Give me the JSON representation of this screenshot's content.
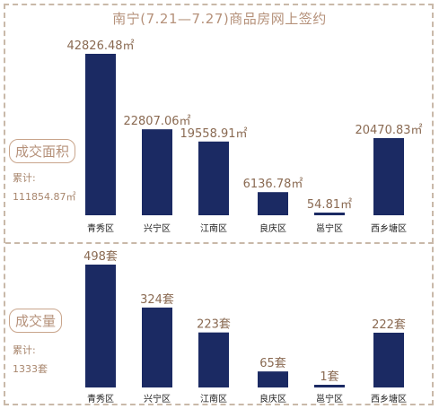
{
  "title": "南宁(7.21—7.27)商品房网上签约",
  "colors": {
    "bar": "#1b2a63",
    "accent": "#b5917a"
  },
  "panels": [
    {
      "metric_label": "成交面积",
      "total_label": "累计:",
      "total_value": "111854.87㎡",
      "value_labels": [
        "42826.48㎡",
        "22807.06㎡",
        "19558.91㎡",
        "6136.78㎡",
        "54.81㎡",
        "20470.83㎡"
      ]
    },
    {
      "metric_label": "成交量",
      "total_label": "累计:",
      "total_value": "1333套",
      "value_labels": [
        "498套",
        "324套",
        "223套",
        "65套",
        "1套",
        "222套"
      ]
    }
  ],
  "chart_data": [
    {
      "type": "bar",
      "title": "南宁(7.21—7.27)商品房网上签约",
      "categories": [
        "青秀区",
        "兴宁区",
        "江南区",
        "良庆区",
        "邕宁区",
        "西乡塘区"
      ],
      "series": [
        {
          "values": [
            42826.48,
            22807.06,
            19558.91,
            6136.78,
            54.81,
            20470.83
          ]
        }
      ],
      "unit": "㎡",
      "ylim": [
        0,
        42826.48
      ],
      "grid": false
    },
    {
      "type": "bar",
      "categories": [
        "青秀区",
        "兴宁区",
        "江南区",
        "良庆区",
        "邕宁区",
        "西乡塘区"
      ],
      "series": [
        {
          "values": [
            498,
            324,
            223,
            65,
            1,
            222
          ]
        }
      ],
      "unit": "套",
      "ylim": [
        0,
        498
      ],
      "grid": false
    }
  ]
}
